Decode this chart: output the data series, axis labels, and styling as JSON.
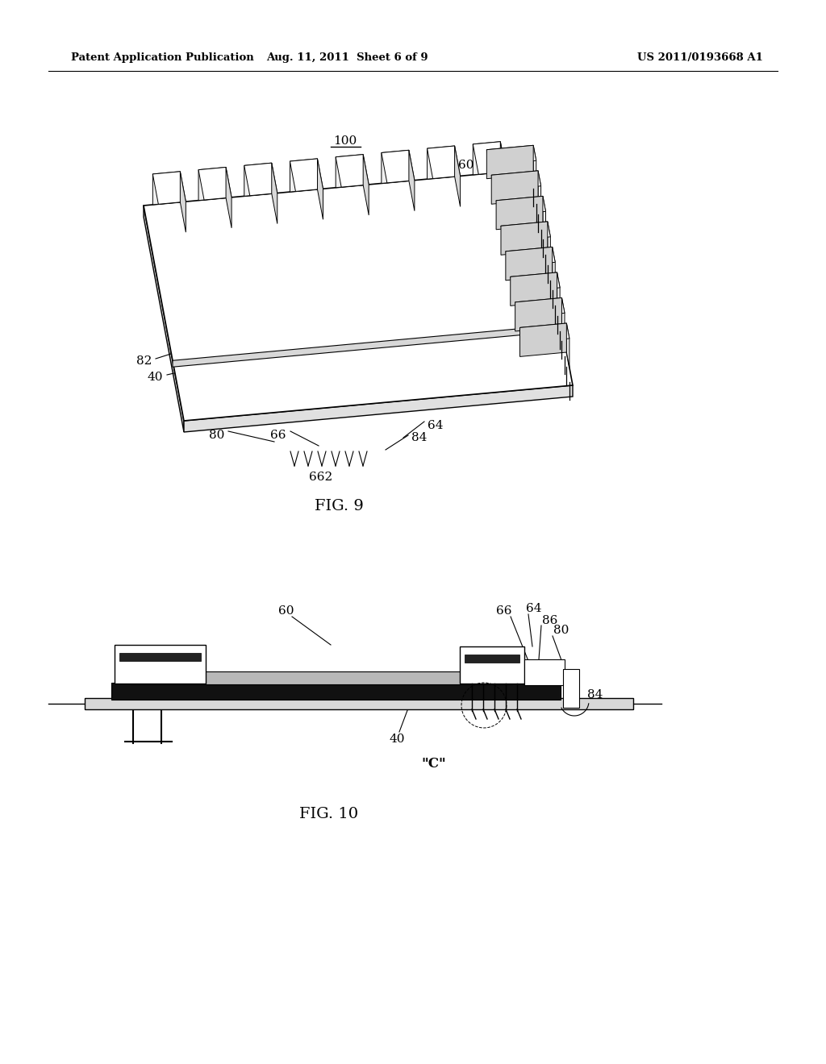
{
  "bg_color": "#ffffff",
  "header_left": "Patent Application Publication",
  "header_center": "Aug. 11, 2011  Sheet 6 of 9",
  "header_right": "US 2011/0193668 A1",
  "fig9_label": "FIG. 9",
  "fig10_label": "FIG. 10",
  "label_100": "100",
  "label_60a": "60",
  "label_82": "82",
  "label_40a": "40",
  "label_80a": "80",
  "label_66a": "66",
  "label_662": "662",
  "label_64a": "64",
  "label_84a": "84",
  "label_60b": "60",
  "label_66b": "66",
  "label_64b": "64",
  "label_86": "86",
  "label_80b": "80",
  "label_40b": "40",
  "label_C": "\"C\"",
  "label_84b": "84"
}
